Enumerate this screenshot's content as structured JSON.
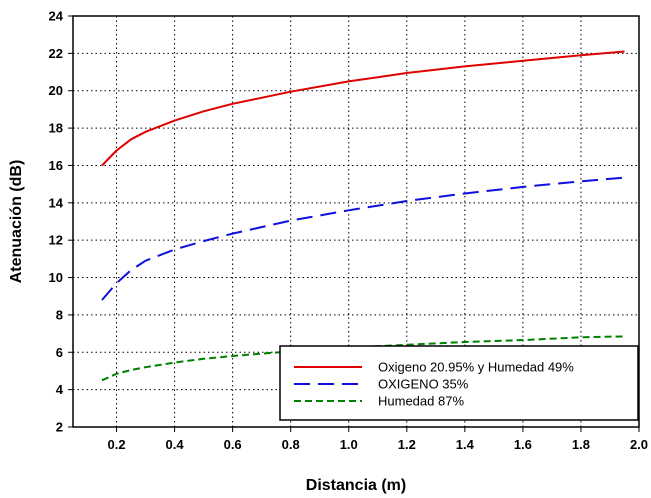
{
  "chart_data": {
    "type": "line",
    "title": "",
    "xlabel": "Distancia (m)",
    "ylabel": "Atenuación (dB)",
    "xlim": [
      0.05,
      2.0
    ],
    "ylim": [
      2,
      24
    ],
    "xticks": [
      "0.2",
      "0.4",
      "0.6",
      "0.8",
      "1.0",
      "1.2",
      "1.4",
      "1.6",
      "1.8",
      "2.0"
    ],
    "yticks": [
      "2",
      "4",
      "6",
      "8",
      "10",
      "12",
      "14",
      "16",
      "18",
      "20",
      "22",
      "24"
    ],
    "grid": true,
    "legend_position": "bottom-right",
    "x": [
      0.15,
      0.2,
      0.25,
      0.3,
      0.4,
      0.5,
      0.6,
      0.8,
      1.0,
      1.2,
      1.4,
      1.6,
      1.8,
      1.95
    ],
    "series": [
      {
        "name": "Oxigeno 20.95%  y Humedad 49%",
        "color": "#e00000",
        "dash": "solid",
        "values": [
          16.0,
          16.8,
          17.4,
          17.8,
          18.4,
          18.9,
          19.3,
          19.95,
          20.5,
          20.95,
          21.3,
          21.6,
          21.9,
          22.1
        ]
      },
      {
        "name": "OXIGENO 35%",
        "color": "#1010e0",
        "dash": "long-dash",
        "values": [
          8.8,
          9.7,
          10.4,
          10.9,
          11.5,
          11.95,
          12.35,
          13.05,
          13.6,
          14.1,
          14.5,
          14.85,
          15.15,
          15.35
        ]
      },
      {
        "name": "Humedad 87%",
        "color": "#008000",
        "dash": "short-dash",
        "values": [
          4.5,
          4.85,
          5.05,
          5.2,
          5.45,
          5.65,
          5.8,
          6.05,
          6.25,
          6.4,
          6.55,
          6.65,
          6.8,
          6.85
        ]
      }
    ]
  }
}
